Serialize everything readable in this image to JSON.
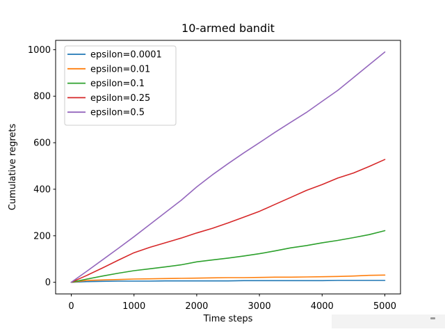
{
  "figure": {
    "background": "#ffffff",
    "axes_edge_color": "#000000",
    "artifact": {
      "band_color": "#f3f3f3",
      "mark_color": "#9a9a9a"
    }
  },
  "chart_data": {
    "type": "line",
    "title": "10-armed bandit",
    "xlabel": "Time steps",
    "ylabel": "Cumulative regrets",
    "xlim": [
      -250,
      5250
    ],
    "ylim": [
      -50,
      1040
    ],
    "xticks": [
      0,
      1000,
      2000,
      3000,
      4000,
      5000
    ],
    "yticks": [
      0,
      200,
      400,
      600,
      800,
      1000
    ],
    "grid": false,
    "legend_position": "upper-left",
    "x": [
      0,
      250,
      500,
      750,
      1000,
      1250,
      1500,
      1750,
      2000,
      2250,
      2500,
      2750,
      3000,
      3250,
      3500,
      3750,
      4000,
      4250,
      4500,
      4750,
      5000
    ],
    "series": [
      {
        "name": "epsilon=0.0001",
        "color": "#1f77b4",
        "values": [
          0,
          3,
          4,
          5,
          5,
          5,
          6,
          6,
          6,
          6,
          6,
          7,
          7,
          7,
          7,
          7,
          7,
          8,
          8,
          8,
          8
        ]
      },
      {
        "name": "epsilon=0.01",
        "color": "#ff7f0e",
        "values": [
          0,
          8,
          10,
          12,
          14,
          15,
          16,
          17,
          18,
          19,
          20,
          20,
          21,
          22,
          22,
          23,
          24,
          25,
          27,
          30,
          31
        ]
      },
      {
        "name": "epsilon=0.1",
        "color": "#2ca02c",
        "values": [
          0,
          14,
          27,
          39,
          50,
          58,
          66,
          75,
          88,
          96,
          104,
          113,
          123,
          135,
          148,
          158,
          170,
          180,
          192,
          205,
          222
        ]
      },
      {
        "name": "epsilon=0.25",
        "color": "#d62728",
        "values": [
          0,
          30,
          62,
          95,
          127,
          150,
          170,
          190,
          212,
          232,
          255,
          280,
          305,
          335,
          365,
          395,
          420,
          448,
          470,
          498,
          528
        ]
      },
      {
        "name": "epsilon=0.5",
        "color": "#9467bd",
        "values": [
          0,
          48,
          97,
          146,
          196,
          248,
          300,
          352,
          410,
          462,
          510,
          556,
          600,
          645,
          688,
          730,
          778,
          825,
          880,
          935,
          990
        ]
      }
    ]
  }
}
